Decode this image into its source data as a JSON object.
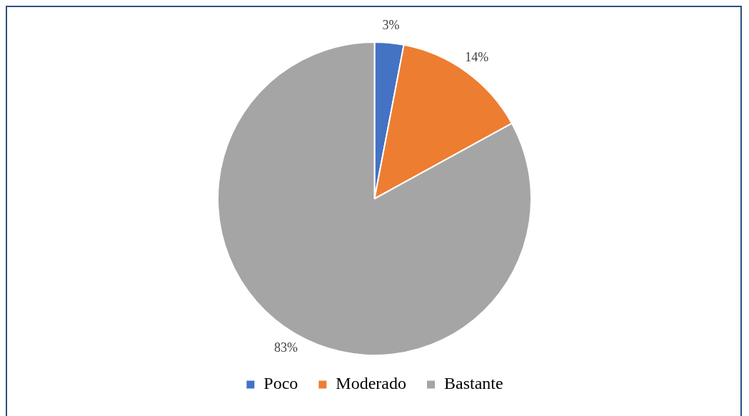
{
  "chart_data": {
    "type": "pie",
    "categories": [
      "Poco",
      "Moderado",
      "Bastante"
    ],
    "values": [
      3,
      14,
      83
    ],
    "colors": [
      "#4472c4",
      "#ed7d31",
      "#a5a5a5"
    ],
    "value_labels": [
      "3%",
      "14%",
      "83%"
    ],
    "legend": "bottom"
  }
}
